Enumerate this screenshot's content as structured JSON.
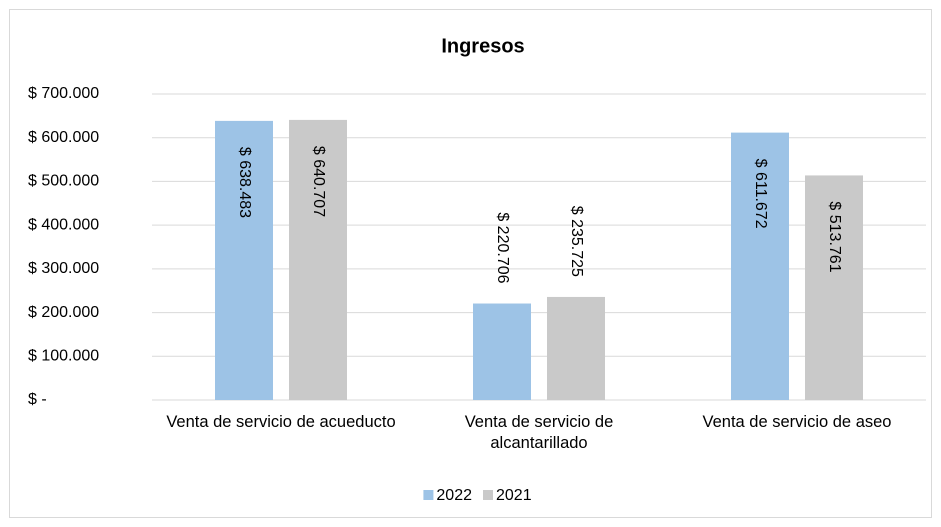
{
  "chart_data": {
    "type": "bar",
    "title": "Ingresos",
    "categories": [
      "Venta de servicio de acueducto",
      "Venta de servicio de alcantarillado",
      "Venta de servicio de aseo"
    ],
    "series": [
      {
        "name": "2022",
        "color": "#9dc3e6",
        "values": [
          638483,
          220706,
          611672
        ],
        "value_labels": [
          "$ 638.483",
          "$ 220.706",
          "$ 611.672"
        ]
      },
      {
        "name": "2021",
        "color": "#c9c9c9",
        "values": [
          640707,
          235725,
          513761
        ],
        "value_labels": [
          "$ 640.707",
          "$ 235.725",
          "$ 513.761"
        ]
      }
    ],
    "ylim": [
      0,
      700000
    ],
    "yticks": [
      {
        "value": 0,
        "label": "$ -"
      },
      {
        "value": 100000,
        "label": "$ 100.000"
      },
      {
        "value": 200000,
        "label": "$ 200.000"
      },
      {
        "value": 300000,
        "label": "$ 300.000"
      },
      {
        "value": 400000,
        "label": "$ 400.000"
      },
      {
        "value": 500000,
        "label": "$ 500.000"
      },
      {
        "value": 600000,
        "label": "$ 600.000"
      },
      {
        "value": 700000,
        "label": "$ 700.000"
      }
    ],
    "grid": true,
    "legend": "bottom"
  }
}
